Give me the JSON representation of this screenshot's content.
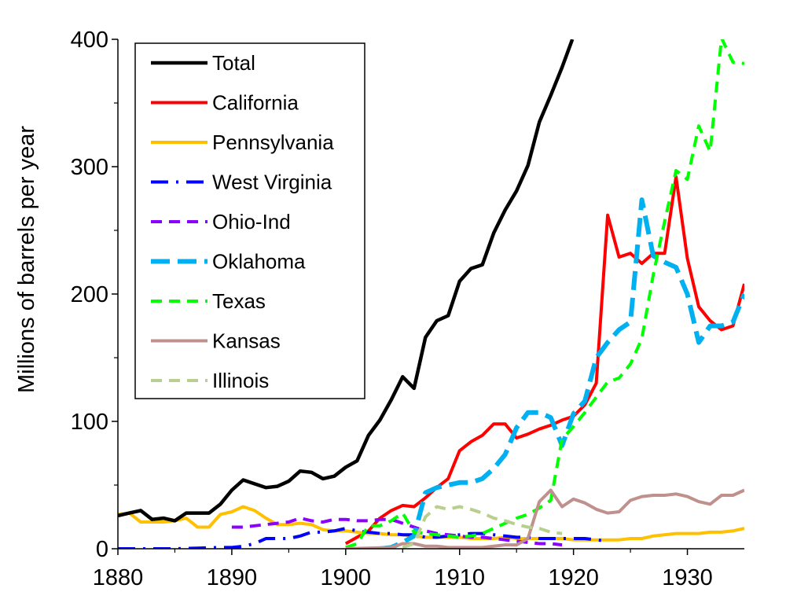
{
  "chart_data": {
    "type": "line",
    "title": "",
    "xlabel": "",
    "ylabel": "Millions of barrels per year",
    "xlim": [
      1880,
      1935
    ],
    "ylim": [
      0,
      400
    ],
    "xticks": [
      1880,
      1890,
      1900,
      1910,
      1920,
      1930
    ],
    "yticks": [
      0,
      100,
      200,
      300,
      400
    ],
    "legend_position": "top-left",
    "series": [
      {
        "name": "Total",
        "color": "#000000",
        "dash": "solid",
        "points": [
          [
            1880,
            26
          ],
          [
            1881,
            28
          ],
          [
            1882,
            30
          ],
          [
            1883,
            23
          ],
          [
            1884,
            24
          ],
          [
            1885,
            22
          ],
          [
            1886,
            28
          ],
          [
            1887,
            28
          ],
          [
            1888,
            28
          ],
          [
            1889,
            35
          ],
          [
            1890,
            46
          ],
          [
            1891,
            54
          ],
          [
            1892,
            51
          ],
          [
            1893,
            48
          ],
          [
            1894,
            49
          ],
          [
            1895,
            53
          ],
          [
            1896,
            61
          ],
          [
            1897,
            60
          ],
          [
            1898,
            55
          ],
          [
            1899,
            57
          ],
          [
            1900,
            64
          ],
          [
            1901,
            69
          ],
          [
            1902,
            89
          ],
          [
            1903,
            101
          ],
          [
            1904,
            117
          ],
          [
            1905,
            135
          ],
          [
            1906,
            126
          ],
          [
            1907,
            166
          ],
          [
            1908,
            179
          ],
          [
            1909,
            183
          ],
          [
            1910,
            210
          ],
          [
            1911,
            220
          ],
          [
            1912,
            223
          ],
          [
            1913,
            248
          ],
          [
            1914,
            266
          ],
          [
            1915,
            281
          ],
          [
            1916,
            301
          ],
          [
            1917,
            335
          ],
          [
            1918,
            356
          ],
          [
            1919,
            378
          ],
          [
            1919.9,
            400
          ]
        ]
      },
      {
        "name": "California",
        "color": "#ff0000",
        "dash": "solid",
        "points": [
          [
            1900,
            4
          ],
          [
            1901,
            9
          ],
          [
            1902,
            14
          ],
          [
            1903,
            24
          ],
          [
            1904,
            30
          ],
          [
            1905,
            34
          ],
          [
            1906,
            33
          ],
          [
            1907,
            40
          ],
          [
            1908,
            48
          ],
          [
            1909,
            55
          ],
          [
            1910,
            77
          ],
          [
            1911,
            84
          ],
          [
            1912,
            89
          ],
          [
            1913,
            98
          ],
          [
            1914,
            98
          ],
          [
            1915,
            87
          ],
          [
            1916,
            90
          ],
          [
            1917,
            94
          ],
          [
            1918,
            97
          ],
          [
            1919,
            101
          ],
          [
            1920,
            104
          ],
          [
            1921,
            113
          ],
          [
            1922,
            130
          ],
          [
            1923,
            262
          ],
          [
            1924,
            229
          ],
          [
            1925,
            232
          ],
          [
            1926,
            224
          ],
          [
            1927,
            232
          ],
          [
            1928,
            232
          ],
          [
            1929,
            292
          ],
          [
            1930,
            228
          ],
          [
            1931,
            190
          ],
          [
            1932,
            179
          ],
          [
            1933,
            172
          ],
          [
            1934,
            175
          ],
          [
            1935,
            208
          ]
        ]
      },
      {
        "name": "Pennsylvania",
        "color": "#ffc000",
        "dash": "solid",
        "points": [
          [
            1880,
            27
          ],
          [
            1881,
            28
          ],
          [
            1882,
            21
          ],
          [
            1883,
            21
          ],
          [
            1884,
            21
          ],
          [
            1885,
            22
          ],
          [
            1886,
            24
          ],
          [
            1887,
            17
          ],
          [
            1888,
            17
          ],
          [
            1889,
            27
          ],
          [
            1890,
            29
          ],
          [
            1891,
            33
          ],
          [
            1892,
            30
          ],
          [
            1893,
            24
          ],
          [
            1894,
            19
          ],
          [
            1895,
            19
          ],
          [
            1896,
            20
          ],
          [
            1897,
            19
          ],
          [
            1898,
            15
          ],
          [
            1899,
            14
          ],
          [
            1900,
            14
          ],
          [
            1901,
            13
          ],
          [
            1902,
            12
          ],
          [
            1903,
            12
          ],
          [
            1904,
            11
          ],
          [
            1905,
            11
          ],
          [
            1906,
            10
          ],
          [
            1907,
            9
          ],
          [
            1908,
            9
          ],
          [
            1909,
            9
          ],
          [
            1910,
            9
          ],
          [
            1911,
            8
          ],
          [
            1912,
            8
          ],
          [
            1913,
            8
          ],
          [
            1914,
            9
          ],
          [
            1915,
            8
          ],
          [
            1916,
            8
          ],
          [
            1917,
            8
          ],
          [
            1918,
            8
          ],
          [
            1919,
            8
          ],
          [
            1920,
            7
          ],
          [
            1921,
            7
          ],
          [
            1922,
            7
          ],
          [
            1923,
            7
          ],
          [
            1924,
            7
          ],
          [
            1925,
            8
          ],
          [
            1926,
            8
          ],
          [
            1927,
            10
          ],
          [
            1928,
            11
          ],
          [
            1929,
            12
          ],
          [
            1930,
            12
          ],
          [
            1931,
            12
          ],
          [
            1932,
            13
          ],
          [
            1933,
            13
          ],
          [
            1934,
            14
          ],
          [
            1935,
            16
          ]
        ]
      },
      {
        "name": "West Virginia",
        "color": "#0000ff",
        "dash": "dashdot",
        "points": [
          [
            1880,
            0
          ],
          [
            1885,
            0
          ],
          [
            1889,
            1
          ],
          [
            1890,
            1
          ],
          [
            1891,
            2
          ],
          [
            1892,
            4
          ],
          [
            1893,
            8
          ],
          [
            1894,
            8
          ],
          [
            1895,
            8
          ],
          [
            1896,
            10
          ],
          [
            1897,
            13
          ],
          [
            1898,
            13
          ],
          [
            1899,
            14
          ],
          [
            1900,
            16
          ],
          [
            1901,
            14
          ],
          [
            1902,
            13
          ],
          [
            1903,
            12
          ],
          [
            1904,
            12
          ],
          [
            1905,
            11
          ],
          [
            1906,
            11
          ],
          [
            1907,
            9
          ],
          [
            1908,
            9
          ],
          [
            1909,
            10
          ],
          [
            1910,
            11
          ],
          [
            1911,
            12
          ],
          [
            1912,
            12
          ],
          [
            1913,
            11
          ],
          [
            1914,
            10
          ],
          [
            1915,
            9
          ],
          [
            1916,
            9
          ],
          [
            1917,
            8
          ],
          [
            1918,
            8
          ],
          [
            1919,
            8
          ],
          [
            1920,
            8
          ],
          [
            1921,
            8
          ],
          [
            1922,
            7
          ],
          [
            1923,
            6
          ]
        ]
      },
      {
        "name": "Ohio-Ind",
        "color": "#8b00ff",
        "dash": "dash",
        "points": [
          [
            1890,
            17
          ],
          [
            1891,
            17
          ],
          [
            1892,
            18
          ],
          [
            1893,
            19
          ],
          [
            1894,
            20
          ],
          [
            1895,
            21
          ],
          [
            1896,
            24
          ],
          [
            1897,
            22
          ],
          [
            1898,
            21
          ],
          [
            1899,
            23
          ],
          [
            1900,
            23
          ],
          [
            1901,
            22
          ],
          [
            1902,
            22
          ],
          [
            1903,
            23
          ],
          [
            1904,
            23
          ],
          [
            1905,
            20
          ],
          [
            1906,
            17
          ],
          [
            1907,
            14
          ],
          [
            1908,
            12
          ],
          [
            1909,
            11
          ],
          [
            1910,
            10
          ],
          [
            1911,
            9
          ],
          [
            1912,
            9
          ],
          [
            1913,
            8
          ],
          [
            1914,
            7
          ],
          [
            1915,
            6
          ],
          [
            1916,
            5
          ],
          [
            1917,
            4
          ],
          [
            1918,
            4
          ],
          [
            1919,
            3
          ]
        ]
      },
      {
        "name": "Oklahoma",
        "color": "#00b0f0",
        "dash": "longdash",
        "points": [
          [
            1903,
            0
          ],
          [
            1904,
            1
          ],
          [
            1905,
            5
          ],
          [
            1906,
            10
          ],
          [
            1907,
            44
          ],
          [
            1908,
            48
          ],
          [
            1909,
            50
          ],
          [
            1910,
            52
          ],
          [
            1911,
            52
          ],
          [
            1912,
            55
          ],
          [
            1913,
            63
          ],
          [
            1914,
            74
          ],
          [
            1915,
            95
          ],
          [
            1916,
            107
          ],
          [
            1917,
            107
          ],
          [
            1918,
            103
          ],
          [
            1919,
            81
          ],
          [
            1920,
            106
          ],
          [
            1921,
            116
          ],
          [
            1922,
            150
          ],
          [
            1923,
            162
          ],
          [
            1924,
            172
          ],
          [
            1925,
            178
          ],
          [
            1926,
            274
          ],
          [
            1927,
            230
          ],
          [
            1928,
            225
          ],
          [
            1929,
            221
          ],
          [
            1930,
            200
          ],
          [
            1931,
            162
          ],
          [
            1932,
            175
          ],
          [
            1933,
            175
          ],
          [
            1934,
            178
          ],
          [
            1935,
            200
          ]
        ]
      },
      {
        "name": "Texas",
        "color": "#00ff00",
        "dash": "dash",
        "points": [
          [
            1900,
            1
          ],
          [
            1901,
            4
          ],
          [
            1902,
            18
          ],
          [
            1903,
            18
          ],
          [
            1904,
            22
          ],
          [
            1905,
            28
          ],
          [
            1906,
            13
          ],
          [
            1907,
            12
          ],
          [
            1908,
            11
          ],
          [
            1909,
            10
          ],
          [
            1910,
            9
          ],
          [
            1911,
            10
          ],
          [
            1912,
            12
          ],
          [
            1913,
            16
          ],
          [
            1914,
            20
          ],
          [
            1915,
            24
          ],
          [
            1916,
            27
          ],
          [
            1917,
            32
          ],
          [
            1918,
            38
          ],
          [
            1919,
            86
          ],
          [
            1920,
            96
          ],
          [
            1921,
            107
          ],
          [
            1922,
            119
          ],
          [
            1923,
            131
          ],
          [
            1924,
            134
          ],
          [
            1925,
            145
          ],
          [
            1926,
            165
          ],
          [
            1927,
            215
          ],
          [
            1928,
            257
          ],
          [
            1929,
            297
          ],
          [
            1930,
            290
          ],
          [
            1931,
            332
          ],
          [
            1932,
            312
          ],
          [
            1933,
            401
          ],
          [
            1934,
            382
          ],
          [
            1935,
            381
          ]
        ]
      },
      {
        "name": "Kansas",
        "color": "#c0908c",
        "dash": "solid",
        "points": [
          [
            1900,
            0
          ],
          [
            1904,
            1
          ],
          [
            1905,
            4
          ],
          [
            1906,
            4
          ],
          [
            1907,
            2
          ],
          [
            1908,
            2
          ],
          [
            1909,
            1
          ],
          [
            1910,
            1
          ],
          [
            1911,
            1
          ],
          [
            1912,
            1
          ],
          [
            1913,
            2
          ],
          [
            1914,
            3
          ],
          [
            1915,
            3
          ],
          [
            1916,
            8
          ],
          [
            1917,
            37
          ],
          [
            1918,
            46
          ],
          [
            1919,
            33
          ],
          [
            1920,
            39
          ],
          [
            1921,
            36
          ],
          [
            1922,
            31
          ],
          [
            1923,
            28
          ],
          [
            1924,
            29
          ],
          [
            1925,
            38
          ],
          [
            1926,
            41
          ],
          [
            1927,
            42
          ],
          [
            1928,
            42
          ],
          [
            1929,
            43
          ],
          [
            1930,
            41
          ],
          [
            1931,
            37
          ],
          [
            1932,
            35
          ],
          [
            1933,
            42
          ],
          [
            1934,
            42
          ],
          [
            1935,
            46
          ]
        ]
      },
      {
        "name": "Illinois",
        "color": "#b8cf8e",
        "dash": "dash",
        "points": [
          [
            1905,
            1
          ],
          [
            1906,
            4
          ],
          [
            1907,
            25
          ],
          [
            1908,
            33
          ],
          [
            1909,
            31
          ],
          [
            1910,
            33
          ],
          [
            1911,
            31
          ],
          [
            1912,
            28
          ],
          [
            1913,
            24
          ],
          [
            1914,
            22
          ],
          [
            1915,
            19
          ],
          [
            1916,
            17
          ],
          [
            1917,
            16
          ],
          [
            1918,
            13
          ],
          [
            1919,
            12
          ]
        ]
      }
    ]
  }
}
